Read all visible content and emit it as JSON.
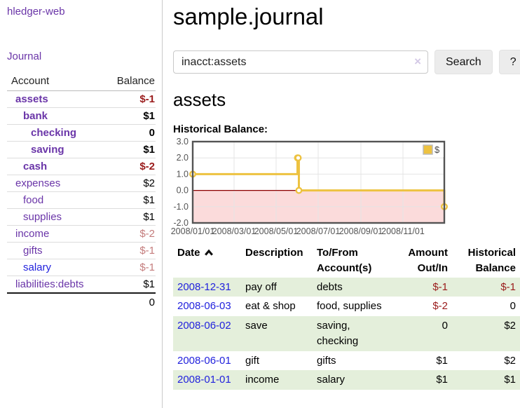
{
  "app": {
    "brand": "hledger-web",
    "nav_journal": "Journal"
  },
  "sidebar": {
    "headers": [
      "Account",
      "Balance"
    ],
    "accounts": [
      {
        "name": "assets",
        "indent": 1,
        "bold": true,
        "balance": "$-1",
        "neg": "strong"
      },
      {
        "name": "bank",
        "indent": 2,
        "bold": true,
        "balance": "$1",
        "neg": ""
      },
      {
        "name": "checking",
        "indent": 3,
        "bold": true,
        "balance": "0",
        "neg": ""
      },
      {
        "name": "saving",
        "indent": 3,
        "bold": true,
        "balance": "$1",
        "neg": ""
      },
      {
        "name": "cash",
        "indent": 2,
        "bold": true,
        "balance": "$-2",
        "neg": "strong"
      },
      {
        "name": "expenses",
        "indent": 1,
        "bold": false,
        "balance": "$2",
        "neg": ""
      },
      {
        "name": "food",
        "indent": 2,
        "bold": false,
        "balance": "$1",
        "neg": ""
      },
      {
        "name": "supplies",
        "indent": 2,
        "bold": false,
        "balance": "$1",
        "neg": ""
      },
      {
        "name": "income",
        "indent": 1,
        "bold": false,
        "balance": "$-2",
        "neg": "faded"
      },
      {
        "name": "gifts",
        "indent": 2,
        "bold": false,
        "balance": "$-1",
        "neg": "faded"
      },
      {
        "name": "salary",
        "indent": 2,
        "bold": false,
        "balance": "$-1",
        "neg": "faded",
        "unvisited": true
      },
      {
        "name": "liabilities:debts",
        "indent": 1,
        "bold": false,
        "balance": "$1",
        "neg": "",
        "last": true
      }
    ],
    "total": "0"
  },
  "main": {
    "title": "sample.journal",
    "search": {
      "value": "inacct:assets",
      "clear_icon": "×",
      "search_label": "Search",
      "help_label": "?"
    },
    "account_heading": "assets"
  },
  "chart_data": {
    "type": "line",
    "title": "Historical Balance:",
    "step": true,
    "series": [
      {
        "name": "$",
        "color": "#edc240",
        "points": [
          [
            "2008-01-01",
            1
          ],
          [
            "2008-06-01",
            2
          ],
          [
            "2008-06-02",
            2
          ],
          [
            "2008-06-03",
            0
          ],
          [
            "2008-12-31",
            -1
          ]
        ]
      }
    ],
    "xlim": [
      "2008-01-01",
      "2008-12-31"
    ],
    "ylim": [
      -2,
      3
    ],
    "y_ticks": [
      "3.0",
      "2.0",
      "1.0",
      "0.0",
      "-1.0",
      "-2.0"
    ],
    "x_ticks": [
      "2008/01/01",
      "2008/03/01",
      "2008/05/01",
      "2008/07/01",
      "2008/09/01",
      "2008/11/01"
    ],
    "legend": {
      "label": "$",
      "position": "top-right"
    },
    "zero_line_color": "#8b0000",
    "negative_region_color": "#fbdbdb",
    "grid_color": "#e4e4e4",
    "border_color": "#545454",
    "tick_label_color": "#545454",
    "marker_fill": "#ffffff"
  },
  "register": {
    "headers": {
      "date": "Date",
      "description": "Description",
      "accounts": "To/From Account(s)",
      "amount": "Amount Out/In",
      "balance": "Historical Balance"
    },
    "sort_direction": "ascending",
    "rows": [
      {
        "date": "2008-12-31",
        "description": "pay off",
        "accounts": "debts",
        "amount": "$-1",
        "amount_neg": true,
        "balance": "$-1",
        "balance_neg": true
      },
      {
        "date": "2008-06-03",
        "description": "eat & shop",
        "accounts": "food, supplies",
        "amount": "$-2",
        "amount_neg": true,
        "balance": "0",
        "balance_neg": false
      },
      {
        "date": "2008-06-02",
        "description": "save",
        "accounts": "saving, checking",
        "amount": "0",
        "amount_neg": false,
        "balance": "$2",
        "balance_neg": false
      },
      {
        "date": "2008-06-01",
        "description": "gift",
        "accounts": "gifts",
        "amount": "$1",
        "amount_neg": false,
        "balance": "$2",
        "balance_neg": false
      },
      {
        "date": "2008-01-01",
        "description": "income",
        "accounts": "salary",
        "amount": "$1",
        "amount_neg": false,
        "balance": "$1",
        "balance_neg": false
      }
    ]
  }
}
